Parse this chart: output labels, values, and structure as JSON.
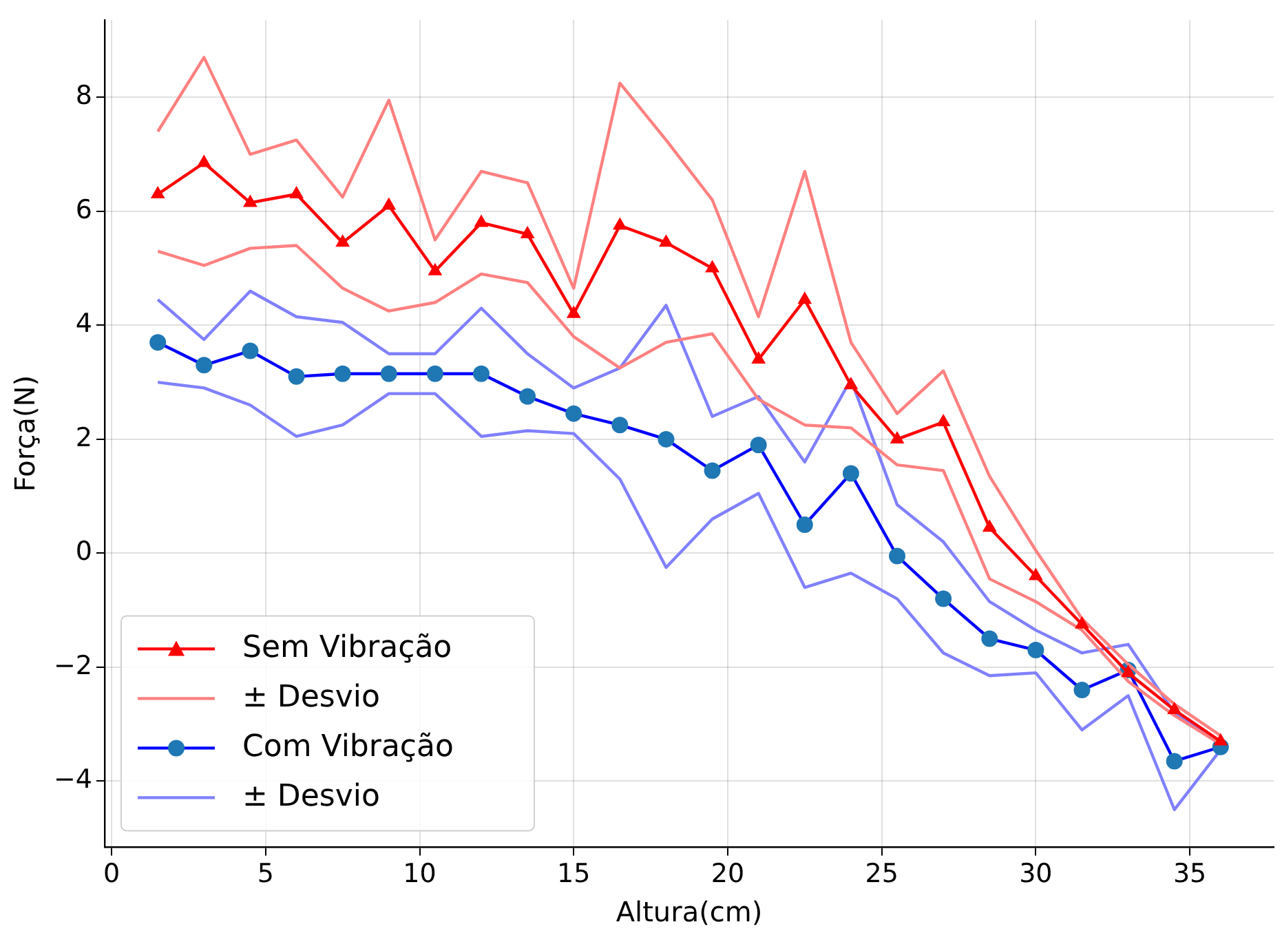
{
  "chart_data": {
    "type": "line",
    "xlabel": "Altura(cm)",
    "ylabel": "Força(N)",
    "x": [
      1.5,
      3,
      4.5,
      6,
      7.5,
      9,
      10.5,
      12,
      13.5,
      15,
      16.5,
      18,
      19.5,
      21,
      22.5,
      24,
      25.5,
      27,
      28.5,
      30,
      31.5,
      33,
      34.5,
      36
    ],
    "series": [
      {
        "name": "Sem Vibração",
        "color": "#ff0000",
        "marker": "triangle",
        "values": [
          6.3,
          6.85,
          6.15,
          6.3,
          5.45,
          6.1,
          4.95,
          5.8,
          5.6,
          4.2,
          5.75,
          5.45,
          5.0,
          3.4,
          4.45,
          2.95,
          2.0,
          2.3,
          0.45,
          -0.4,
          -1.25,
          -2.1,
          -2.75,
          -3.3
        ]
      },
      {
        "name": "± Desvio",
        "color": "#ff8080",
        "marker": "none",
        "values": [
          7.4,
          8.7,
          7.0,
          7.25,
          6.25,
          7.95,
          5.5,
          6.7,
          6.5,
          4.65,
          8.25,
          7.25,
          6.2,
          4.15,
          6.7,
          3.7,
          2.45,
          3.2,
          1.35,
          0.05,
          -1.15,
          -1.95,
          -2.65,
          -3.2
        ]
      },
      {
        "color": "#ff8080",
        "marker": "none",
        "values": [
          5.3,
          5.05,
          5.35,
          5.4,
          4.65,
          4.25,
          4.4,
          4.9,
          4.75,
          3.8,
          3.25,
          3.7,
          3.85,
          2.7,
          2.25,
          2.2,
          1.55,
          1.45,
          -0.45,
          -0.85,
          -1.35,
          -2.25,
          -2.85,
          -3.35
        ]
      },
      {
        "name": "Com Vibração",
        "color": "#0000ff",
        "marker": "circle",
        "values": [
          3.7,
          3.3,
          3.55,
          3.1,
          3.15,
          3.15,
          3.15,
          3.15,
          2.75,
          2.45,
          2.25,
          2.0,
          1.45,
          1.9,
          0.5,
          1.4,
          -0.05,
          -0.8,
          -1.5,
          -1.7,
          -2.4,
          -2.05,
          -3.65,
          -3.4
        ]
      },
      {
        "name": "± Desvio",
        "color": "#8080ff",
        "marker": "none",
        "values": [
          4.45,
          3.75,
          4.6,
          4.15,
          4.05,
          3.5,
          3.5,
          4.3,
          3.5,
          2.9,
          3.25,
          4.35,
          2.4,
          2.75,
          1.6,
          3.05,
          0.85,
          0.2,
          -0.85,
          -1.35,
          -1.75,
          -1.6,
          -2.8,
          -3.35
        ]
      },
      {
        "color": "#8080ff",
        "marker": "none",
        "values": [
          3.0,
          2.9,
          2.6,
          2.05,
          2.25,
          2.8,
          2.8,
          2.05,
          2.15,
          2.1,
          1.3,
          -0.25,
          0.6,
          1.05,
          -0.6,
          -0.35,
          -0.8,
          -1.75,
          -2.15,
          -2.1,
          -3.1,
          -2.5,
          -4.5,
          -3.45
        ]
      }
    ],
    "xlim": [
      -0.225,
      37.725
    ],
    "xticks": [
      0,
      5,
      10,
      15,
      20,
      25,
      30,
      35
    ],
    "ylim": [
      -5.16,
      9.36
    ],
    "yticks": [
      -4,
      -2,
      0,
      2,
      4,
      6,
      8
    ],
    "grid": true,
    "legend": "bottom left",
    "line_style": "solid"
  }
}
